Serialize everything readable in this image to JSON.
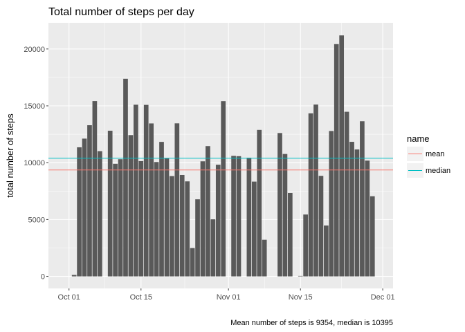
{
  "chart_data": {
    "type": "bar",
    "title": "Total number of steps per day",
    "xlabel": "",
    "ylabel": "total number of steps",
    "caption": "Mean number of steps is 9354, median is 10395",
    "x_type": "date",
    "x_ticks": [
      "2012-10-01",
      "2012-10-15",
      "2012-11-01",
      "2012-11-15",
      "2012-12-01"
    ],
    "x_tick_labels": [
      "Oct 01",
      "Oct 15",
      "Nov 01",
      "Nov 15",
      "Dec 01"
    ],
    "y_ticks": [
      0,
      5000,
      10000,
      15000,
      20000
    ],
    "y_tick_labels": [
      "0",
      "5000",
      "10000",
      "15000",
      "20000"
    ],
    "ylim": [
      -1060,
      22300
    ],
    "xlim": [
      "2012-09-27",
      "2012-12-03"
    ],
    "grid": true,
    "bar_color": "#595959",
    "panel_color": "#ebebeb",
    "dates": [
      "2012-10-01",
      "2012-10-02",
      "2012-10-03",
      "2012-10-04",
      "2012-10-05",
      "2012-10-06",
      "2012-10-07",
      "2012-10-08",
      "2012-10-09",
      "2012-10-10",
      "2012-10-11",
      "2012-10-12",
      "2012-10-13",
      "2012-10-14",
      "2012-10-15",
      "2012-10-16",
      "2012-10-17",
      "2012-10-18",
      "2012-10-19",
      "2012-10-20",
      "2012-10-21",
      "2012-10-22",
      "2012-10-23",
      "2012-10-24",
      "2012-10-25",
      "2012-10-26",
      "2012-10-27",
      "2012-10-28",
      "2012-10-29",
      "2012-10-30",
      "2012-10-31",
      "2012-11-01",
      "2012-11-02",
      "2012-11-03",
      "2012-11-04",
      "2012-11-05",
      "2012-11-06",
      "2012-11-07",
      "2012-11-08",
      "2012-11-09",
      "2012-11-10",
      "2012-11-11",
      "2012-11-12",
      "2012-11-13",
      "2012-11-14",
      "2012-11-15",
      "2012-11-16",
      "2012-11-17",
      "2012-11-18",
      "2012-11-19",
      "2012-11-20",
      "2012-11-21",
      "2012-11-22",
      "2012-11-23",
      "2012-11-24",
      "2012-11-25",
      "2012-11-26",
      "2012-11-27",
      "2012-11-28",
      "2012-11-29",
      "2012-11-30"
    ],
    "values": [
      0,
      126,
      11352,
      12116,
      13294,
      15420,
      11015,
      0,
      12811,
      9900,
      10304,
      17382,
      12426,
      15098,
      10139,
      15084,
      13452,
      10056,
      11829,
      10395,
      8821,
      13460,
      8918,
      8355,
      2492,
      6778,
      10119,
      11458,
      5018,
      9819,
      15414,
      0,
      10600,
      10571,
      0,
      10439,
      8334,
      12883,
      3219,
      0,
      0,
      12608,
      10765,
      7336,
      0,
      41,
      5441,
      14339,
      15110,
      8841,
      4472,
      12787,
      20427,
      21194,
      14478,
      11834,
      11162,
      13646,
      10183,
      7047,
      0
    ],
    "reference_lines": [
      {
        "name": "mean",
        "value": 9354,
        "color": "#f8766d"
      },
      {
        "name": "median",
        "value": 10395,
        "color": "#00bfc4"
      }
    ],
    "legend": {
      "title": "name",
      "position": "right"
    }
  }
}
